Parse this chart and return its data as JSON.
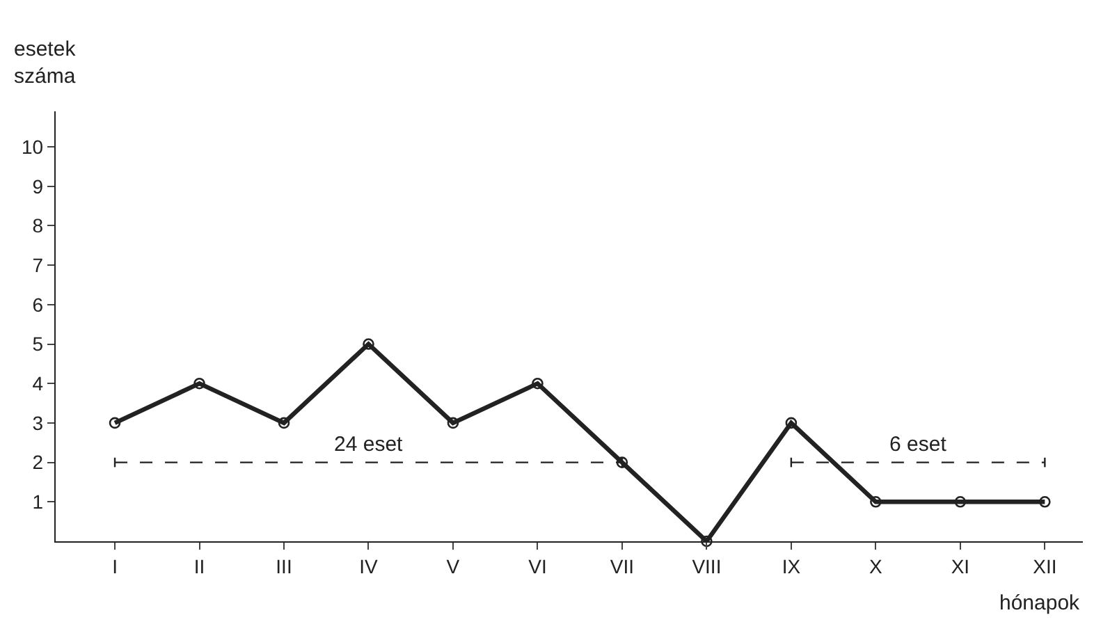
{
  "chart_data": {
    "type": "line",
    "xlabel": "hónapok",
    "ylabel": "esetek száma",
    "categories": [
      "I",
      "II",
      "III",
      "IV",
      "V",
      "VI",
      "VII",
      "VIII",
      "IX",
      "X",
      "XI",
      "XII"
    ],
    "series": [
      {
        "color": "#222222",
        "values": [
          3,
          4,
          3,
          5,
          3,
          4,
          2,
          0,
          3,
          1,
          1,
          1
        ],
        "marker": "circle",
        "line_style": "solid"
      },
      {
        "name": "24 eset",
        "color": "#222222",
        "x": [
          "I",
          "VII"
        ],
        "values": [
          2,
          2
        ],
        "line_style": "dashed"
      },
      {
        "name": "6 eset",
        "color": "#222222",
        "x": [
          "IX",
          "XII"
        ],
        "values": [
          2,
          2
        ],
        "line_style": "dashed"
      }
    ],
    "ylim": [
      0,
      10.9
    ],
    "yticks": [
      1,
      2,
      3,
      4,
      5,
      6,
      7,
      8,
      9,
      10
    ],
    "grid": false,
    "legend": false
  }
}
